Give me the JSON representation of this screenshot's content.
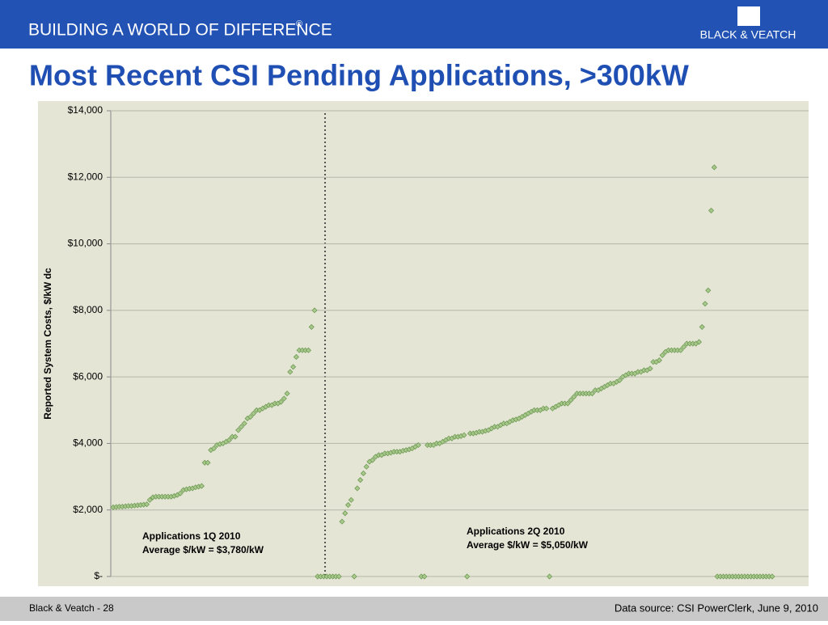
{
  "header": {
    "tagline": "BUILDING A WORLD OF DIFFERENCE",
    "registered": "®",
    "company": "BLACK & VEATCH"
  },
  "footer": {
    "left": "Black & Veatch - 28",
    "right": "Data source: CSI PowerClerk, June 9, 2010"
  },
  "chart_data": {
    "type": "scatter",
    "title": "Most Recent CSI Pending Applications, >300kW",
    "y_label": "Reported System Costs, $/kW dc",
    "annotations": [
      [
        "Applications 1Q 2010",
        "Average $/kW = $3,780/kW"
      ],
      [
        "Applications 2Q 2010",
        "Average $/kW = $5,050/kW"
      ]
    ],
    "color": "#a9c98c",
    "edge_color": "#6f9a55",
    "ylim": [
      0,
      14000
    ],
    "yticks": [
      {
        "value": 0,
        "label": "$-"
      },
      {
        "value": 2000,
        "label": "$2,000"
      },
      {
        "value": 4000,
        "label": "$4,000"
      },
      {
        "value": 6000,
        "label": "$6,000"
      },
      {
        "value": 8000,
        "label": "$8,000"
      },
      {
        "value": 10000,
        "label": "$10,000"
      },
      {
        "value": 12000,
        "label": "$12,000"
      },
      {
        "value": 14000,
        "label": "$14,000"
      }
    ],
    "grid": true,
    "values": [
      2080,
      2090,
      2100,
      2100,
      2110,
      2120,
      2120,
      2130,
      2140,
      2150,
      2160,
      2170,
      2300,
      2380,
      2400,
      2400,
      2400,
      2400,
      2400,
      2400,
      2420,
      2450,
      2500,
      2600,
      2620,
      2640,
      2650,
      2680,
      2700,
      2720,
      3420,
      3420,
      3800,
      3850,
      3950,
      3980,
      4000,
      4050,
      4100,
      4200,
      4200,
      4400,
      4500,
      4600,
      4750,
      4800,
      4900,
      5000,
      5000,
      5050,
      5100,
      5150,
      5150,
      5200,
      5200,
      5250,
      5350,
      5500,
      6150,
      6300,
      6600,
      6800,
      6800,
      6800,
      6800,
      7500,
      8000,
      0,
      0,
      0,
      0,
      0,
      0,
      0,
      0,
      1650,
      1900,
      2150,
      2300,
      0,
      2650,
      2900,
      3100,
      3300,
      3450,
      3500,
      3600,
      3650,
      3650,
      3700,
      3700,
      3720,
      3750,
      3750,
      3750,
      3780,
      3800,
      3820,
      3850,
      3900,
      3950,
      0,
      0,
      3950,
      3950,
      3950,
      4000,
      4000,
      4050,
      4100,
      4150,
      4150,
      4200,
      4200,
      4220,
      4250,
      0,
      4300,
      4300,
      4320,
      4350,
      4350,
      4380,
      4400,
      4450,
      4500,
      4500,
      4550,
      4600,
      4600,
      4650,
      4700,
      4720,
      4750,
      4800,
      4850,
      4900,
      4950,
      5000,
      5000,
      5000,
      5050,
      5050,
      0,
      5050,
      5100,
      5150,
      5200,
      5200,
      5200,
      5300,
      5400,
      5500,
      5500,
      5500,
      5500,
      5500,
      5500,
      5600,
      5600,
      5650,
      5700,
      5750,
      5800,
      5800,
      5850,
      5900,
      6000,
      6050,
      6100,
      6100,
      6100,
      6150,
      6150,
      6200,
      6200,
      6250,
      6450,
      6450,
      6500,
      6650,
      6750,
      6800,
      6800,
      6800,
      6800,
      6800,
      6900,
      7000,
      7000,
      7000,
      7000,
      7050,
      7500,
      8200,
      8600,
      11000,
      12300,
      0,
      0,
      0,
      0,
      0,
      0,
      0,
      0,
      0,
      0,
      0,
      0,
      0,
      0,
      0,
      0,
      0,
      0,
      0
    ]
  }
}
